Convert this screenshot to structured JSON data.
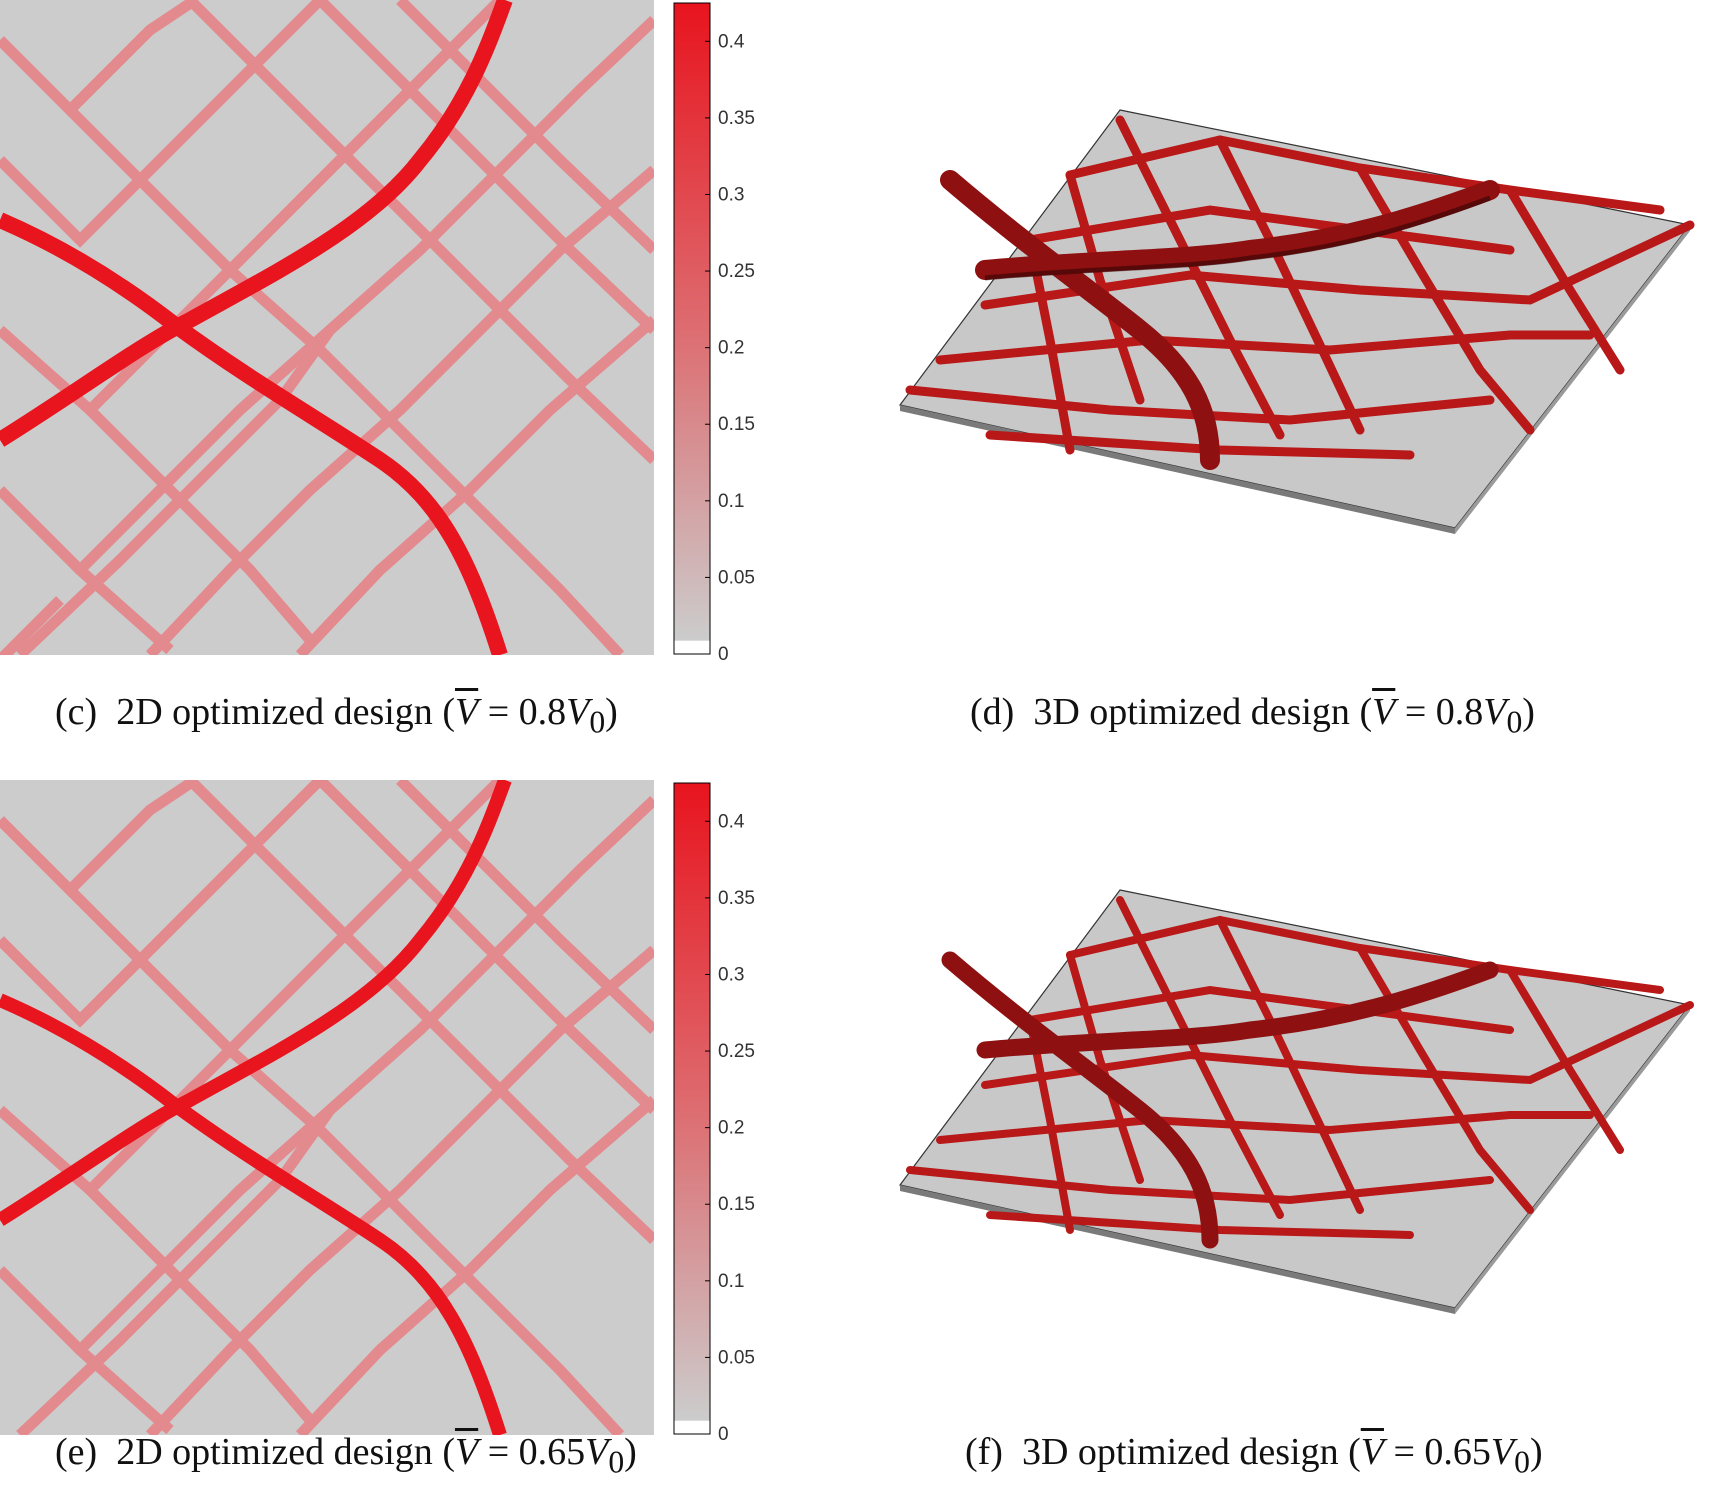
{
  "figure": {
    "panels": [
      {
        "id": "c",
        "label": "(c)",
        "text": "2D optimized design",
        "vol": "0.8"
      },
      {
        "id": "d",
        "label": "(d)",
        "text": "3D optimized design",
        "vol": "0.8"
      },
      {
        "id": "e",
        "label": "(e)",
        "text": "2D optimized design",
        "vol": "0.65"
      },
      {
        "id": "f",
        "label": "(f)",
        "text": "3D optimized design",
        "vol": "0.65"
      }
    ],
    "colorbar": {
      "ticks": [
        "0",
        "0.05",
        "0.1",
        "0.15",
        "0.2",
        "0.25",
        "0.3",
        "0.35",
        "0.4"
      ],
      "min": 0,
      "max": 0.425,
      "low_color": "#cccccc",
      "high_color": "#e8141e"
    },
    "colors": {
      "background": "#cccccc",
      "strong": "#e8141e",
      "weak": "#e38a8e",
      "plate": "#c4c4c4",
      "rib": "#b31616"
    }
  }
}
